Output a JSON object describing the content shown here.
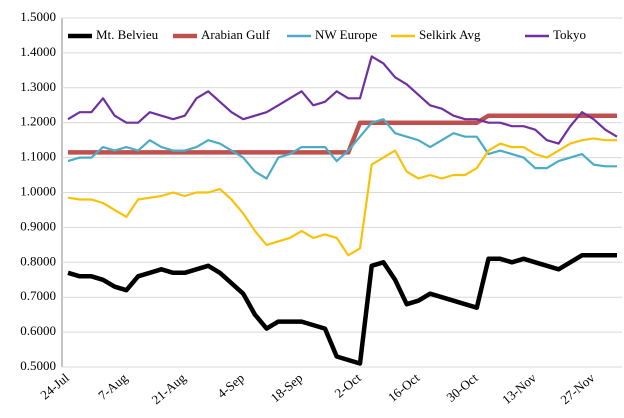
{
  "chart_data": {
    "type": "line",
    "categories": [
      "24-Jul",
      null,
      null,
      null,
      null,
      "7-Aug",
      null,
      null,
      null,
      null,
      "21-Aug",
      null,
      null,
      null,
      null,
      "4-Sep",
      null,
      null,
      null,
      null,
      "18-Sep",
      null,
      null,
      null,
      null,
      "2-Oct",
      null,
      null,
      null,
      null,
      "16-Oct",
      null,
      null,
      null,
      null,
      "30-Oct",
      null,
      null,
      null,
      null,
      "13-Nov",
      null,
      null,
      null,
      null,
      "27-Nov",
      null,
      null
    ],
    "series": [
      {
        "name": "Mt. Belvieu",
        "color": "#000000",
        "values": [
          0.77,
          0.76,
          0.76,
          0.75,
          0.73,
          0.72,
          0.76,
          0.77,
          0.78,
          0.77,
          0.77,
          0.78,
          0.79,
          0.77,
          0.74,
          0.71,
          0.65,
          0.61,
          0.63,
          0.63,
          0.63,
          0.62,
          0.61,
          0.53,
          0.52,
          0.51,
          0.79,
          0.8,
          0.75,
          0.68,
          0.69,
          0.71,
          0.7,
          0.69,
          0.68,
          0.67,
          0.81,
          0.81,
          0.8,
          0.81,
          0.8,
          0.79,
          0.78,
          0.8,
          0.82,
          0.82,
          0.82,
          0.82
        ]
      },
      {
        "name": "Arabian Gulf",
        "color": "#c0504d",
        "values": [
          1.115,
          1.115,
          1.115,
          1.115,
          1.115,
          1.115,
          1.115,
          1.115,
          1.115,
          1.115,
          1.115,
          1.115,
          1.115,
          1.115,
          1.115,
          1.115,
          1.115,
          1.115,
          1.115,
          1.115,
          1.115,
          1.115,
          1.115,
          1.115,
          1.115,
          1.2,
          1.2,
          1.2,
          1.2,
          1.2,
          1.2,
          1.2,
          1.2,
          1.2,
          1.2,
          1.2,
          1.22,
          1.22,
          1.22,
          1.22,
          1.22,
          1.22,
          1.22,
          1.22,
          1.22,
          1.22,
          1.22,
          1.22
        ]
      },
      {
        "name": "NW Europe",
        "color": "#4bacc6",
        "values": [
          1.09,
          1.1,
          1.1,
          1.13,
          1.12,
          1.13,
          1.12,
          1.15,
          1.13,
          1.12,
          1.12,
          1.13,
          1.15,
          1.14,
          1.12,
          1.1,
          1.06,
          1.04,
          1.1,
          1.11,
          1.13,
          1.13,
          1.13,
          1.09,
          1.12,
          1.16,
          1.2,
          1.21,
          1.17,
          1.16,
          1.15,
          1.13,
          1.15,
          1.17,
          1.16,
          1.16,
          1.11,
          1.12,
          1.11,
          1.1,
          1.07,
          1.07,
          1.09,
          1.1,
          1.11,
          1.08,
          1.075,
          1.075
        ]
      },
      {
        "name": "Selkirk Avg",
        "color": "#f9c20a",
        "values": [
          0.985,
          0.98,
          0.98,
          0.97,
          0.95,
          0.93,
          0.98,
          0.985,
          0.99,
          1.0,
          0.99,
          1.0,
          1.0,
          1.01,
          0.98,
          0.94,
          0.89,
          0.85,
          0.86,
          0.87,
          0.89,
          0.87,
          0.88,
          0.87,
          0.82,
          0.84,
          1.08,
          1.1,
          1.12,
          1.06,
          1.04,
          1.05,
          1.04,
          1.05,
          1.05,
          1.07,
          1.12,
          1.14,
          1.13,
          1.13,
          1.11,
          1.1,
          1.12,
          1.14,
          1.15,
          1.155,
          1.15,
          1.15
        ]
      },
      {
        "name": "Tokyo",
        "color": "#7030a0",
        "values": [
          1.21,
          1.23,
          1.23,
          1.27,
          1.22,
          1.2,
          1.2,
          1.23,
          1.22,
          1.21,
          1.22,
          1.27,
          1.29,
          1.26,
          1.23,
          1.21,
          1.22,
          1.23,
          1.25,
          1.27,
          1.29,
          1.25,
          1.26,
          1.29,
          1.27,
          1.27,
          1.39,
          1.37,
          1.33,
          1.31,
          1.28,
          1.25,
          1.24,
          1.22,
          1.21,
          1.21,
          1.2,
          1.2,
          1.19,
          1.19,
          1.18,
          1.15,
          1.14,
          1.19,
          1.23,
          1.21,
          1.18,
          1.16
        ]
      }
    ],
    "ylim": [
      0.5,
      1.5
    ],
    "yticks": [
      {
        "value": 0.5,
        "label": "0.5000"
      },
      {
        "value": 0.6,
        "label": "0.6000"
      },
      {
        "value": 0.7,
        "label": "0.7000"
      },
      {
        "value": 0.8,
        "label": "0.8000"
      },
      {
        "value": 0.9,
        "label": "0.9000"
      },
      {
        "value": 1.0,
        "label": "1.0000"
      },
      {
        "value": 1.1,
        "label": "1.1000"
      },
      {
        "value": 1.2,
        "label": "1.2000"
      },
      {
        "value": 1.3,
        "label": "1.3000"
      },
      {
        "value": 1.4,
        "label": "1.4000"
      },
      {
        "value": 1.5,
        "label": "1.5000"
      }
    ],
    "grid": true,
    "legend": "top"
  }
}
